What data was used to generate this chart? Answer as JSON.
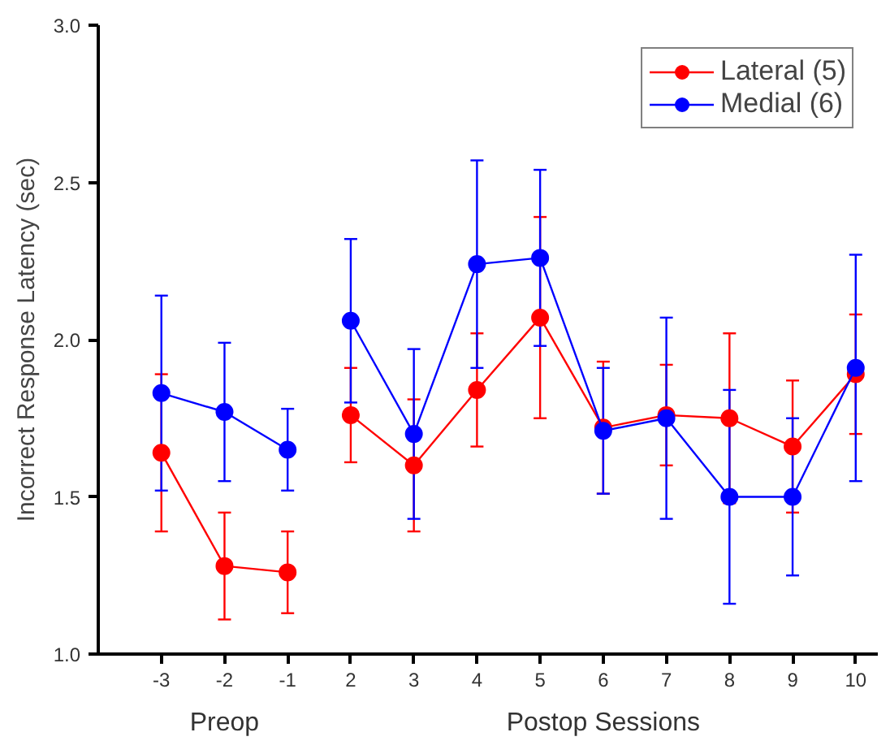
{
  "chart_data": {
    "type": "line",
    "ylabel": "Incorrect Response Latency (sec)",
    "categories": [
      "-3",
      "-2",
      "-1",
      "2",
      "3",
      "4",
      "5",
      "6",
      "7",
      "8",
      "9",
      "10"
    ],
    "series": [
      {
        "name": "Lateral (5)",
        "color": "#ff0000",
        "values": [
          1.64,
          1.28,
          1.26,
          null,
          null,
          null,
          null,
          null,
          null,
          null,
          null,
          null
        ],
        "errors": [
          [
            1.39,
            1.89
          ],
          [
            1.11,
            1.45
          ],
          [
            1.13,
            1.39
          ],
          null,
          null,
          null,
          null,
          null,
          null,
          null,
          null,
          null
        ]
      },
      {
        "color": "#ff0000",
        "values": [
          null,
          null,
          null,
          1.76,
          1.6,
          1.84,
          2.07,
          1.72,
          1.76,
          1.75,
          1.66,
          1.89
        ],
        "errors": [
          null,
          null,
          null,
          [
            1.61,
            1.91
          ],
          [
            1.39,
            1.81
          ],
          [
            1.66,
            2.02
          ],
          [
            1.75,
            2.39
          ],
          [
            1.51,
            1.93
          ],
          [
            1.6,
            1.92
          ],
          [
            1.48,
            2.02
          ],
          [
            1.45,
            1.87
          ],
          [
            1.7,
            2.08
          ]
        ]
      },
      {
        "name": "Medial (6)",
        "color": "#0000ff",
        "values": [
          1.83,
          1.77,
          1.65,
          null,
          null,
          null,
          null,
          null,
          null,
          null,
          null,
          null
        ],
        "errors": [
          [
            1.52,
            2.14
          ],
          [
            1.55,
            1.99
          ],
          [
            1.52,
            1.78
          ],
          null,
          null,
          null,
          null,
          null,
          null,
          null,
          null,
          null
        ]
      },
      {
        "color": "#0000ff",
        "values": [
          null,
          null,
          null,
          2.06,
          1.7,
          2.24,
          2.26,
          1.71,
          1.75,
          1.5,
          1.5,
          1.91
        ],
        "errors": [
          null,
          null,
          null,
          [
            1.8,
            2.32
          ],
          [
            1.43,
            1.97
          ],
          [
            1.91,
            2.57
          ],
          [
            1.98,
            2.54
          ],
          [
            1.51,
            1.91
          ],
          [
            1.43,
            2.07
          ],
          [
            1.16,
            1.84
          ],
          [
            1.25,
            1.75
          ],
          [
            1.55,
            2.27
          ]
        ]
      }
    ],
    "ylim": [
      1.0,
      3.0
    ],
    "yticks": [
      {
        "value": 1.0,
        "label": "1.0"
      },
      {
        "value": 1.5,
        "label": "1.5"
      },
      {
        "value": 2.0,
        "label": "2.0"
      },
      {
        "value": 2.5,
        "label": "2.5"
      },
      {
        "value": 3.0,
        "label": "3.0"
      }
    ],
    "annotations": [
      "Preop",
      "Postop Sessions"
    ],
    "legend": "top right",
    "grid": false,
    "marker": "circle",
    "line_style": "solid"
  }
}
